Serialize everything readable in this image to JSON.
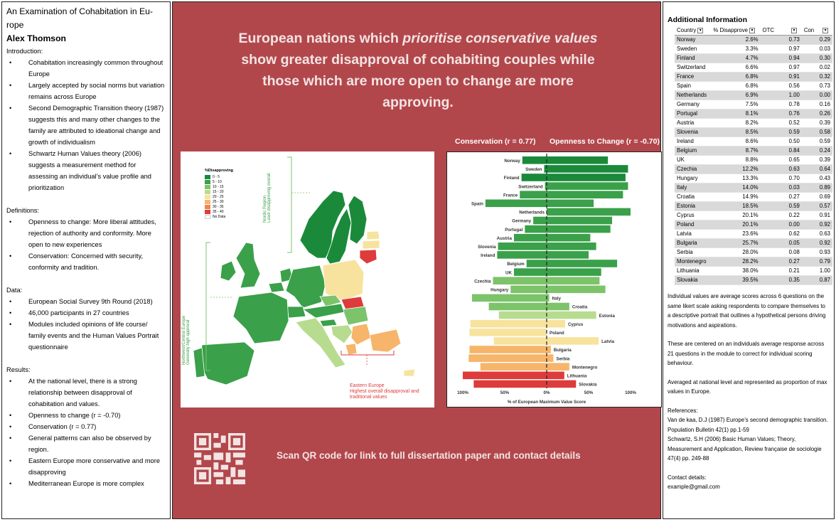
{
  "left": {
    "title": "An Examination of Cohabitation in Europe",
    "title_lines": [
      "An Examination of Cohabitation in Eu-",
      "rope"
    ],
    "author": "Alex Thomson",
    "intro_heading": "Introduction:",
    "intro_items": [
      "Cohabitation increasingly common throughout Europe",
      "Largely accepted by social norms but variation remains across Europe",
      "Second Demographic Transition theory (1987) suggests this and many other changes to the family are attributed to ideational change and growth of individualism",
      "Schwartz Human Values theory (2006) suggests a measurement method for assessing an individual’s value profile and prioritization"
    ],
    "defs_heading": "Definitions:",
    "defs_items": [
      "Openness to change: More liberal attitudes, rejection of authority and conformity. More open to new experiences",
      "Conservation: Concerned with security, conformity and tradition."
    ],
    "data_heading": "Data:",
    "data_items": [
      "European Social Survey 9th Round (2018)",
      "46,000 participants in 27 countries",
      "Modules included opinions of life course/ family events and the Human Values Portrait questionnaire"
    ],
    "results_heading": "Results:",
    "results_items": [
      "At the national level, there is a strong relationship between disapproval of cohabitation and values.",
      "Openness to change (r = -0.70)",
      "Conservation (r = 0.77)",
      "General patterns can also be observed by region.",
      "Eastern Europe more conservative and more disapproving",
      "Mediterranean Europe is more complex"
    ]
  },
  "center": {
    "headline_pre": "European nations which ",
    "headline_em": "prioritise conservative values",
    "headline_post": " show greater disapproval of cohabiting couples while those which are more open to change are more approving.",
    "conservation_label": "Conservation (r = 0.77)",
    "openness_label": "Openness to Change (r = -0.70)",
    "map": {
      "legend_title": "%Disapproving",
      "legend": [
        {
          "label": "0 - 5",
          "color": "#1a8a3a"
        },
        {
          "label": "5 - 10",
          "color": "#3aa04a"
        },
        {
          "label": "10 - 15",
          "color": "#7cc36a"
        },
        {
          "label": "15 - 20",
          "color": "#b7dc8f"
        },
        {
          "label": "20 - 25",
          "color": "#f7e39e"
        },
        {
          "label": "25 - 30",
          "color": "#f6b56a"
        },
        {
          "label": "30 - 35",
          "color": "#ef8256"
        },
        {
          "label": "35 - 40",
          "color": "#de3b3b"
        },
        {
          "label": "No Data",
          "color": "#ffffff"
        }
      ],
      "nordic_label": "Nordic Region",
      "nordic_sub": "Least disapproving overall",
      "nw_label": "Northwest/Central Europe",
      "nw_sub": "Generally high approval",
      "east_label": "Eastern Europe",
      "east_sub": "Highest overall disapproval and traditional values"
    },
    "qr_text": "Scan QR code for link to full dissertation paper and contact details"
  },
  "chart_data": {
    "type": "bar",
    "title": "",
    "xlabel": "% of European Maximum Value Score",
    "ylabel": "",
    "x_tick_labels": [
      "100%",
      "50%",
      "0%",
      "50%",
      "100%"
    ],
    "categories": [
      "Norway",
      "Sweden",
      "Finland",
      "Switzerland",
      "France",
      "Spain",
      "Netherlands",
      "Germany",
      "Portugal",
      "Austria",
      "Slovenia",
      "Ireland",
      "Belgium",
      "UK",
      "Czechia",
      "Hungary",
      "Italy",
      "Croatia",
      "Estonia",
      "Cyprus",
      "Poland",
      "Latvia",
      "Bulgaria",
      "Serbia",
      "Montenegro",
      "Lithuania",
      "Slovakia"
    ],
    "series": [
      {
        "name": "Conservation",
        "direction": "left",
        "values": [
          0.29,
          0.03,
          0.3,
          0.02,
          0.32,
          0.73,
          0.0,
          0.16,
          0.26,
          0.39,
          0.58,
          0.59,
          0.24,
          0.39,
          0.64,
          0.43,
          0.89,
          0.69,
          0.57,
          0.91,
          0.92,
          0.63,
          0.92,
          0.93,
          0.79,
          1.0,
          0.87
        ]
      },
      {
        "name": "Openness to Change",
        "direction": "right",
        "values": [
          0.73,
          0.97,
          0.94,
          0.97,
          0.91,
          0.56,
          1.0,
          0.78,
          0.76,
          0.52,
          0.59,
          0.5,
          0.84,
          0.65,
          0.63,
          0.7,
          0.03,
          0.27,
          0.59,
          0.22,
          0.0,
          0.62,
          0.05,
          0.08,
          0.27,
          0.21,
          0.35
        ]
      }
    ],
    "disapprove_pct": [
      2.6,
      3.3,
      4.7,
      6.6,
      6.8,
      6.8,
      6.9,
      7.5,
      8.1,
      8.2,
      8.5,
      8.6,
      8.7,
      8.8,
      12.2,
      13.3,
      14.0,
      14.9,
      18.5,
      20.1,
      20.1,
      23.6,
      25.7,
      28.0,
      28.2,
      38.0,
      39.5
    ]
  },
  "right": {
    "heading": "Additional Information",
    "table_headers": [
      "Country",
      "% Disapprove",
      "OTC",
      "Con"
    ],
    "rows": [
      [
        "Norway",
        "2.6%",
        "0.73",
        "0.29"
      ],
      [
        "Sweden",
        "3.3%",
        "0.97",
        "0.03"
      ],
      [
        "Finland",
        "4.7%",
        "0.94",
        "0.30"
      ],
      [
        "Switzerland",
        "6.6%",
        "0.97",
        "0.02"
      ],
      [
        "France",
        "6.8%",
        "0.91",
        "0.32"
      ],
      [
        "Spain",
        "6.8%",
        "0.56",
        "0.73"
      ],
      [
        "Netherlands",
        "6.9%",
        "1.00",
        "0.00"
      ],
      [
        "Germany",
        "7.5%",
        "0.78",
        "0.16"
      ],
      [
        "Portugal",
        "8.1%",
        "0.76",
        "0.26"
      ],
      [
        "Austria",
        "8.2%",
        "0.52",
        "0.39"
      ],
      [
        "Slovenia",
        "8.5%",
        "0.59",
        "0.58"
      ],
      [
        "Ireland",
        "8.6%",
        "0.50",
        "0.59"
      ],
      [
        "Belgium",
        "8.7%",
        "0.84",
        "0.24"
      ],
      [
        "UK",
        "8.8%",
        "0.65",
        "0.39"
      ],
      [
        "Czechia",
        "12.2%",
        "0.63",
        "0.64"
      ],
      [
        "Hungary",
        "13.3%",
        "0.70",
        "0.43"
      ],
      [
        "Italy",
        "14.0%",
        "0.03",
        "0.89"
      ],
      [
        "Croatia",
        "14.9%",
        "0.27",
        "0.69"
      ],
      [
        "Estonia",
        "18.5%",
        "0.59",
        "0.57"
      ],
      [
        "Cyprus",
        "20.1%",
        "0.22",
        "0.91"
      ],
      [
        "Poland",
        "20.1%",
        "0.00",
        "0.92"
      ],
      [
        "Latvia",
        "23.6%",
        "0.62",
        "0.63"
      ],
      [
        "Bulgaria",
        "25.7%",
        "0.05",
        "0.92"
      ],
      [
        "Serbia",
        "28.0%",
        "0.08",
        "0.93"
      ],
      [
        "Montenegro",
        "28.2%",
        "0.27",
        "0.79"
      ],
      [
        "Lithuania",
        "38.0%",
        "0.21",
        "1.00"
      ],
      [
        "Slovakia",
        "39.5%",
        "0.35",
        "0.87"
      ]
    ],
    "note1": "Individual values are average scores across 6 questions on the same likert scale asking respondents to compare themselves to a descriptive portrait that outlines a hypothetical persons driving motivations and aspirations.",
    "note2": "These are centered on an individuals average response across 21 questions in the module to correct for individual scoring behaviour.",
    "note3": "Averaged at national level and represented as proportion of max values in Europe.",
    "refs_heading": "References:",
    "ref1": "Van de kaa, D.J (1987) Europe’s second demographic transition. Population Bulletin 42(1) pp.1-59",
    "ref2": "Schwartz, S.H (2006) Basic Human Values; Theory, Measurement and Application, Review française de sociologie 47(4) pp. 249-88",
    "contact_heading": "Contact details:",
    "contact_email": "example@gmail.com"
  }
}
